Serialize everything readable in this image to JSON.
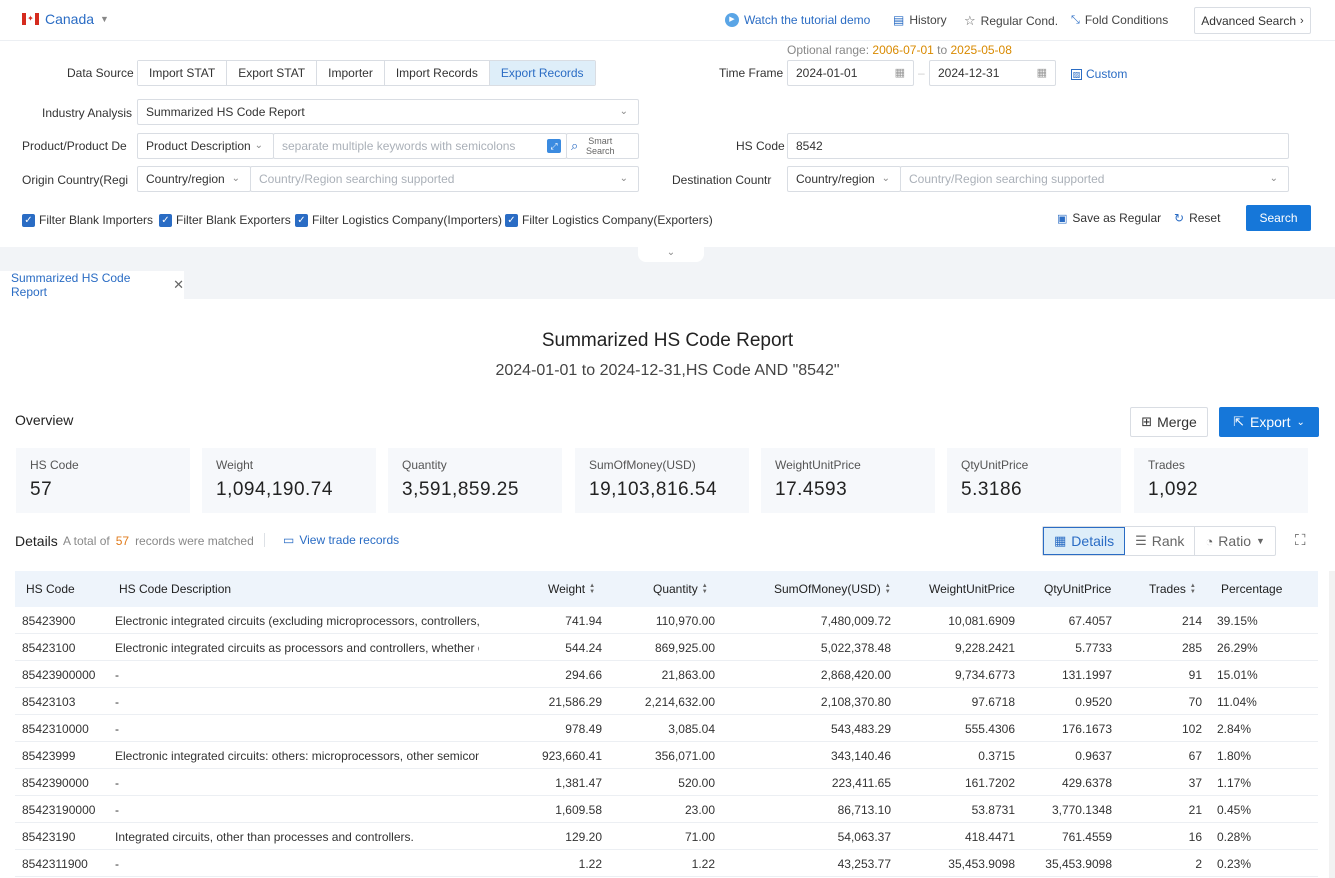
{
  "topbar": {
    "country": "Canada",
    "tutorial": "Watch the tutorial demo",
    "history": "History",
    "regular": "Regular Cond.",
    "fold": "Fold Conditions",
    "advanced": "Advanced Search"
  },
  "form": {
    "optional_range_label": "Optional range:",
    "optional_range_start": "2006-07-01",
    "optional_range_to": "to",
    "optional_range_end": "2025-05-08",
    "data_source_label": "Data Source",
    "data_sources": [
      "Import STAT",
      "Export STAT",
      "Importer",
      "Import Records",
      "Export Records"
    ],
    "time_frame_label": "Time Frame",
    "date_start": "2024-01-01",
    "date_end": "2024-12-31",
    "custom": "Custom",
    "industry_label": "Industry Analysis",
    "industry_value": "Summarized HS Code Report",
    "product_label": "Product/Product De",
    "product_select": "Product Description",
    "product_placeholder": "separate multiple keywords with semicolons",
    "smart_search": "Smart Search",
    "hs_label": "HS Code",
    "hs_value": "8542",
    "origin_label": "Origin Country(Regi",
    "origin_select": "Country/region",
    "origin_placeholder": "Country/Region searching supported",
    "dest_label": "Destination Countr",
    "dest_select": "Country/region",
    "dest_placeholder": "Country/Region searching supported",
    "filters": [
      "Filter Blank Importers",
      "Filter Blank Exporters",
      "Filter Logistics Company(Importers)",
      "Filter Logistics Company(Exporters)"
    ],
    "save_regular": "Save as Regular",
    "reset": "Reset",
    "search": "Search"
  },
  "tab": {
    "label": "Summarized HS Code Report"
  },
  "report": {
    "title": "Summarized HS Code Report",
    "subtitle": "2024-01-01 to 2024-12-31,HS Code AND \"8542\"",
    "overview": "Overview",
    "merge": "Merge",
    "export": "Export",
    "stats": [
      {
        "title": "HS Code",
        "value": "57"
      },
      {
        "title": "Weight",
        "value": "1,094,190.74"
      },
      {
        "title": "Quantity",
        "value": "3,591,859.25"
      },
      {
        "title": "SumOfMoney(USD)",
        "value": "19,103,816.54"
      },
      {
        "title": "WeightUnitPrice",
        "value": "17.4593"
      },
      {
        "title": "QtyUnitPrice",
        "value": "5.3186"
      },
      {
        "title": "Trades",
        "value": "1,092"
      }
    ],
    "details": "Details",
    "total_prefix": "A total of",
    "total_count": "57",
    "total_suffix": "records were matched",
    "view_trade": "View trade records",
    "views": [
      "Details",
      "Rank",
      "Ratio"
    ]
  },
  "table": {
    "headers": [
      "HS Code",
      "HS Code Description",
      "Weight",
      "Quantity",
      "SumOfMoney(USD)",
      "WeightUnitPrice",
      "QtyUnitPrice",
      "Trades",
      "Percentage"
    ],
    "rows": [
      [
        "85423900",
        "Electronic integrated circuits (excluding microprocessors, controllers, ...",
        "741.94",
        "110,970.00",
        "7,480,009.72",
        "10,081.6909",
        "67.4057",
        "214",
        "39.15%"
      ],
      [
        "85423100",
        "Electronic integrated circuits as processors and controllers, whether or...",
        "544.24",
        "869,925.00",
        "5,022,378.48",
        "9,228.2421",
        "5.7733",
        "285",
        "26.29%"
      ],
      [
        "85423900000",
        "-",
        "294.66",
        "21,863.00",
        "2,868,420.00",
        "9,734.6773",
        "131.1997",
        "91",
        "15.01%"
      ],
      [
        "85423103",
        "-",
        "21,586.29",
        "2,214,632.00",
        "2,108,370.80",
        "97.6718",
        "0.9520",
        "70",
        "11.04%"
      ],
      [
        "8542310000",
        "-",
        "978.49",
        "3,085.04",
        "543,483.29",
        "555.4306",
        "176.1673",
        "102",
        "2.84%"
      ],
      [
        "85423999",
        "Electronic integrated circuits: others: microprocessors, other semicond...",
        "923,660.41",
        "356,071.00",
        "343,140.46",
        "0.3715",
        "0.9637",
        "67",
        "1.80%"
      ],
      [
        "8542390000",
        "-",
        "1,381.47",
        "520.00",
        "223,411.65",
        "161.7202",
        "429.6378",
        "37",
        "1.17%"
      ],
      [
        "85423190000",
        "-",
        "1,609.58",
        "23.00",
        "86,713.10",
        "53.8731",
        "3,770.1348",
        "21",
        "0.45%"
      ],
      [
        "85423190",
        "Integrated circuits, other than processes and controllers.",
        "129.20",
        "71.00",
        "54,063.37",
        "418.4471",
        "761.4559",
        "16",
        "0.28%"
      ],
      [
        "8542311900",
        "-",
        "1.22",
        "1.22",
        "43,253.77",
        "35,453.9098",
        "35,453.9098",
        "2",
        "0.23%"
      ]
    ]
  }
}
